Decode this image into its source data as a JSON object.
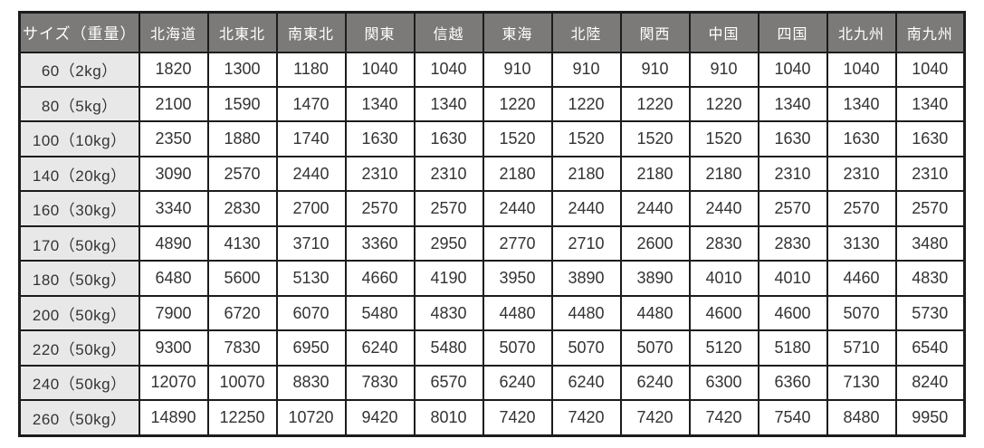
{
  "colors": {
    "header_bg": "#7b7a78",
    "header_text": "#ffffff",
    "row_label_bg": "#e8e8e8",
    "cell_bg": "#ffffff",
    "cell_text": "#333333",
    "border": "#1c1c1c"
  },
  "table": {
    "header": [
      "サイズ（重量）",
      "北海道",
      "北東北",
      "南東北",
      "関東",
      "信越",
      "東海",
      "北陸",
      "関西",
      "中国",
      "四国",
      "北九州",
      "南九州"
    ],
    "rows": [
      {
        "label": "60（2kg）",
        "values": [
          "1820",
          "1300",
          "1180",
          "1040",
          "1040",
          "910",
          "910",
          "910",
          "910",
          "1040",
          "1040",
          "1040"
        ]
      },
      {
        "label": "80（5kg）",
        "values": [
          "2100",
          "1590",
          "1470",
          "1340",
          "1340",
          "1220",
          "1220",
          "1220",
          "1220",
          "1340",
          "1340",
          "1340"
        ]
      },
      {
        "label": "100（10kg）",
        "values": [
          "2350",
          "1880",
          "1740",
          "1630",
          "1630",
          "1520",
          "1520",
          "1520",
          "1520",
          "1630",
          "1630",
          "1630"
        ]
      },
      {
        "label": "140（20kg）",
        "values": [
          "3090",
          "2570",
          "2440",
          "2310",
          "2310",
          "2180",
          "2180",
          "2180",
          "2180",
          "2310",
          "2310",
          "2310"
        ]
      },
      {
        "label": "160（30kg）",
        "values": [
          "3340",
          "2830",
          "2700",
          "2570",
          "2570",
          "2440",
          "2440",
          "2440",
          "2440",
          "2570",
          "2570",
          "2570"
        ]
      },
      {
        "label": "170（50kg）",
        "values": [
          "4890",
          "4130",
          "3710",
          "3360",
          "2950",
          "2770",
          "2710",
          "2600",
          "2830",
          "2830",
          "3130",
          "3480"
        ]
      },
      {
        "label": "180（50kg）",
        "values": [
          "6480",
          "5600",
          "5130",
          "4660",
          "4190",
          "3950",
          "3890",
          "3890",
          "4010",
          "4010",
          "4460",
          "4830"
        ]
      },
      {
        "label": "200（50kg）",
        "values": [
          "7900",
          "6720",
          "6070",
          "5480",
          "4830",
          "4480",
          "4480",
          "4480",
          "4600",
          "4600",
          "5070",
          "5730"
        ]
      },
      {
        "label": "220（50kg）",
        "values": [
          "9300",
          "7830",
          "6950",
          "6240",
          "5480",
          "5070",
          "5070",
          "5070",
          "5120",
          "5180",
          "5710",
          "6540"
        ]
      },
      {
        "label": "240（50kg）",
        "values": [
          "12070",
          "10070",
          "8830",
          "7830",
          "6570",
          "6240",
          "6240",
          "6240",
          "6300",
          "6360",
          "7130",
          "8240"
        ]
      },
      {
        "label": "260（50kg）",
        "values": [
          "14890",
          "12250",
          "10720",
          "9420",
          "8010",
          "7420",
          "7420",
          "7420",
          "7420",
          "7540",
          "8480",
          "9950"
        ]
      }
    ]
  }
}
